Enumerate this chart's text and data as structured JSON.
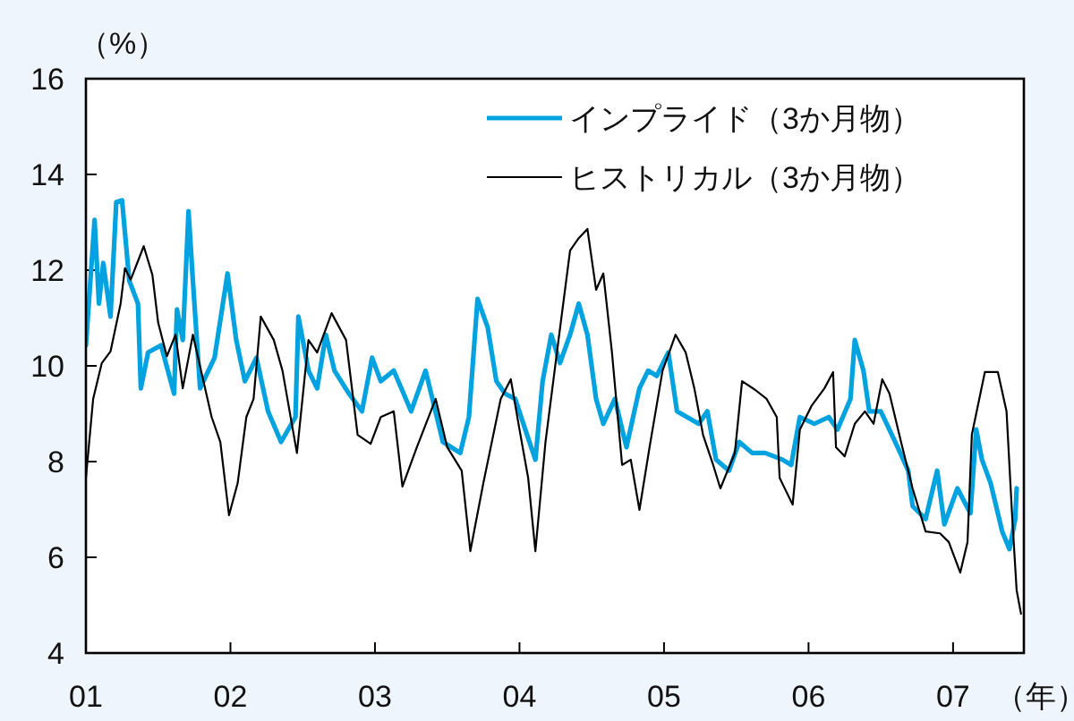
{
  "chart_data": {
    "type": "line",
    "xlabel": "（年）",
    "ylabel": "（%）",
    "xlim": [
      2001,
      2007.49
    ],
    "ylim": [
      4,
      16
    ],
    "xticks": [
      {
        "value": 2001,
        "label": "01"
      },
      {
        "value": 2002,
        "label": "02"
      },
      {
        "value": 2003,
        "label": "03"
      },
      {
        "value": 2004,
        "label": "04"
      },
      {
        "value": 2005,
        "label": "05"
      },
      {
        "value": 2006,
        "label": "06"
      },
      {
        "value": 2007,
        "label": "07"
      }
    ],
    "yticks": [
      4,
      6,
      8,
      10,
      12,
      14,
      16
    ],
    "grid": false,
    "legend": "top right",
    "series": [
      {
        "name": "インプライド（3か月物）",
        "color": "#00a3e0",
        "x": [
          2001.0,
          2001.06,
          2001.09,
          2001.12,
          2001.17,
          2001.21,
          2001.25,
          2001.3,
          2001.36,
          2001.38,
          2001.43,
          2001.52,
          2001.61,
          2001.63,
          2001.67,
          2001.71,
          2001.74,
          2001.79,
          2001.89,
          2001.98,
          2002.04,
          2002.1,
          2002.18,
          2002.26,
          2002.35,
          2002.45,
          2002.47,
          2002.54,
          2002.6,
          2002.66,
          2002.72,
          2002.82,
          2002.91,
          2002.98,
          2003.04,
          2003.13,
          2003.25,
          2003.35,
          2003.47,
          2003.59,
          2003.65,
          2003.71,
          2003.78,
          2003.84,
          2003.9,
          2003.97,
          2004.04,
          2004.11,
          2004.16,
          2004.22,
          2004.28,
          2004.35,
          2004.41,
          2004.47,
          2004.53,
          2004.58,
          2004.66,
          2004.74,
          2004.83,
          2004.89,
          2004.95,
          2005.03,
          2005.09,
          2005.24,
          2005.3,
          2005.36,
          2005.45,
          2005.52,
          2005.61,
          2005.7,
          2005.82,
          2005.88,
          2005.94,
          2006.04,
          2006.14,
          2006.2,
          2006.29,
          2006.32,
          2006.38,
          2006.42,
          2006.5,
          2006.6,
          2006.69,
          2006.72,
          2006.81,
          2006.89,
          2006.94,
          2007.03,
          2007.12,
          2007.16,
          2007.2,
          2007.26,
          2007.34,
          2007.39,
          2007.43,
          2007.44
        ],
        "values": [
          10.43,
          13.05,
          11.3,
          12.15,
          11.03,
          13.42,
          13.46,
          11.78,
          11.3,
          9.53,
          10.28,
          10.43,
          9.42,
          11.18,
          10.54,
          13.23,
          11.78,
          9.53,
          10.17,
          11.93,
          10.54,
          9.68,
          10.17,
          9.05,
          8.41,
          8.93,
          11.03,
          9.9,
          9.53,
          10.65,
          9.9,
          9.42,
          9.05,
          10.17,
          9.68,
          9.9,
          9.05,
          9.9,
          8.41,
          8.18,
          8.93,
          11.4,
          10.8,
          9.68,
          9.42,
          9.31,
          8.67,
          8.04,
          9.68,
          10.65,
          10.06,
          10.65,
          11.3,
          10.65,
          9.31,
          8.79,
          9.31,
          8.3,
          9.53,
          9.9,
          9.79,
          10.28,
          9.05,
          8.79,
          9.05,
          8.04,
          7.81,
          8.41,
          8.18,
          8.18,
          8.04,
          7.93,
          8.93,
          8.79,
          8.93,
          8.67,
          9.31,
          10.54,
          9.9,
          9.05,
          9.05,
          8.41,
          7.81,
          7.07,
          6.8,
          7.81,
          6.69,
          7.44,
          6.92,
          8.67,
          8.04,
          7.55,
          6.54,
          6.17,
          6.8,
          7.44
        ]
      },
      {
        "name": "ヒストリカル（3か月物）",
        "color": "#000000",
        "x": [
          2001.0,
          2001.05,
          2001.11,
          2001.17,
          2001.24,
          2001.27,
          2001.31,
          2001.4,
          2001.46,
          2001.5,
          2001.56,
          2001.62,
          2001.67,
          2001.74,
          2001.87,
          2001.93,
          2001.99,
          2002.05,
          2002.11,
          2002.16,
          2002.21,
          2002.3,
          2002.36,
          2002.46,
          2002.54,
          2002.6,
          2002.7,
          2002.8,
          2002.88,
          2002.97,
          2003.04,
          2003.13,
          2003.19,
          2003.29,
          2003.42,
          2003.5,
          2003.6,
          2003.66,
          2003.75,
          2003.87,
          2003.94,
          2004.0,
          2004.06,
          2004.11,
          2004.18,
          2004.27,
          2004.35,
          2004.41,
          2004.47,
          2004.53,
          2004.58,
          2004.64,
          2004.71,
          2004.77,
          2004.83,
          2004.9,
          2004.99,
          2005.08,
          2005.15,
          2005.21,
          2005.27,
          2005.34,
          2005.39,
          2005.49,
          2005.54,
          2005.63,
          2005.71,
          2005.78,
          2005.8,
          2005.89,
          2005.94,
          2006.02,
          2006.11,
          2006.17,
          2006.19,
          2006.25,
          2006.32,
          2006.39,
          2006.45,
          2006.51,
          2006.56,
          2006.64,
          2006.72,
          2006.81,
          2006.91,
          2006.97,
          2007.05,
          2007.1,
          2007.13,
          2007.22,
          2007.31,
          2007.37,
          2007.41,
          2007.44,
          2007.47
        ],
        "values": [
          7.66,
          9.31,
          10.06,
          10.3,
          11.3,
          12.04,
          11.8,
          12.5,
          11.9,
          10.9,
          10.2,
          10.65,
          9.53,
          10.65,
          8.93,
          8.41,
          6.88,
          7.55,
          8.93,
          9.31,
          11.03,
          10.54,
          9.9,
          8.18,
          10.54,
          10.28,
          11.1,
          10.54,
          8.56,
          8.37,
          8.93,
          9.05,
          7.48,
          8.3,
          9.31,
          8.3,
          7.81,
          6.13,
          7.55,
          9.31,
          9.72,
          8.67,
          7.66,
          6.13,
          8.41,
          10.54,
          12.41,
          12.67,
          12.86,
          11.59,
          11.93,
          10.28,
          7.93,
          8.04,
          6.99,
          8.3,
          9.9,
          10.65,
          10.28,
          9.53,
          8.56,
          7.93,
          7.44,
          8.18,
          9.68,
          9.5,
          9.31,
          8.93,
          7.66,
          7.1,
          8.67,
          9.16,
          9.53,
          9.87,
          8.3,
          8.11,
          8.79,
          9.05,
          8.79,
          9.72,
          9.42,
          8.41,
          7.44,
          6.54,
          6.5,
          6.32,
          5.68,
          6.32,
          8.56,
          9.87,
          9.87,
          9.05,
          6.8,
          5.31,
          4.82
        ]
      }
    ]
  }
}
